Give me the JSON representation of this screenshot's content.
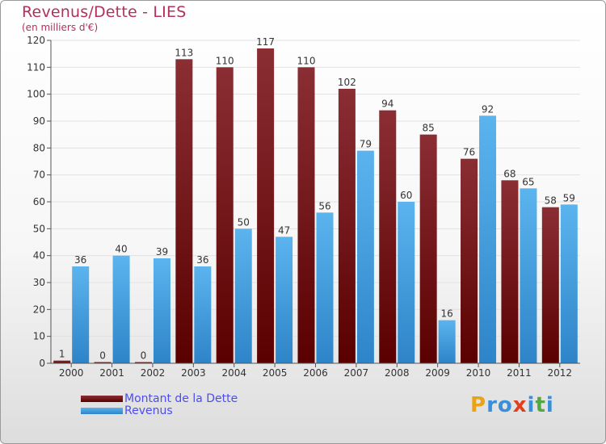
{
  "header": {
    "title": "Revenus/Dette - LIES",
    "subtitle": "(en milliers d'€)"
  },
  "colors": {
    "dette_top": "#8a2e34",
    "dette_bottom": "#5a0000",
    "revenus_top": "#5bb4ee",
    "revenus_bottom": "#2e84c8",
    "title": "#b03060",
    "legend_text": "#4c4cf0"
  },
  "chart_data": {
    "type": "bar",
    "categories": [
      "2000",
      "2001",
      "2002",
      "2003",
      "2004",
      "2005",
      "2006",
      "2007",
      "2008",
      "2009",
      "2010",
      "2011",
      "2012"
    ],
    "series": [
      {
        "name": "Montant de la Dette",
        "values": [
          1,
          0,
          0,
          113,
          110,
          117,
          110,
          102,
          94,
          85,
          76,
          68,
          58
        ]
      },
      {
        "name": "Revenus",
        "values": [
          36,
          40,
          39,
          36,
          50,
          47,
          56,
          79,
          60,
          16,
          92,
          65,
          59
        ]
      }
    ],
    "ylim": [
      0,
      120
    ],
    "yticks": [
      0,
      10,
      20,
      30,
      40,
      50,
      60,
      70,
      80,
      90,
      100,
      110,
      120
    ],
    "grid": true,
    "legend_position": "bottom-left"
  },
  "legend": {
    "items": [
      {
        "label": "Montant de la Dette"
      },
      {
        "label": "Revenus"
      }
    ]
  },
  "logo": {
    "letters": [
      "P",
      "r",
      "o",
      "x",
      "i",
      "t",
      "i"
    ],
    "colors": [
      "#e8a317",
      "#3a8fd8",
      "#3a8fd8",
      "#e04020",
      "#3a8fd8",
      "#54a844",
      "#3a8fd8"
    ]
  }
}
